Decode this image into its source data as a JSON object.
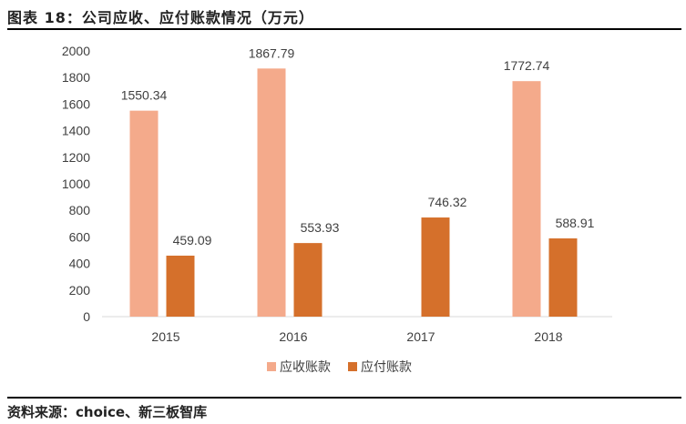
{
  "title": "图表 18：公司应收、应付账款情况（万元）",
  "source": "资料来源：choice、新三板智库",
  "chart_data": {
    "type": "bar",
    "categories": [
      "2015",
      "2016",
      "2017",
      "2018"
    ],
    "series": [
      {
        "name": "应收账款",
        "values": [
          1550.34,
          1867.79,
          null,
          1772.74
        ],
        "labels": [
          "1550.34",
          "1867.79",
          "",
          "1772.74"
        ],
        "color": "#F4AA8B"
      },
      {
        "name": "应付账款",
        "values": [
          459.09,
          553.93,
          746.32,
          588.91
        ],
        "labels": [
          "459.09",
          "553.93",
          "746.32",
          "588.91"
        ],
        "color": "#D5702B"
      }
    ],
    "ylim": [
      0,
      2000
    ],
    "yticks": [
      "0",
      "200",
      "400",
      "600",
      "800",
      "1000",
      "1200",
      "1400",
      "1600",
      "1800",
      "2000"
    ],
    "grid": false,
    "legend": "bottom"
  }
}
